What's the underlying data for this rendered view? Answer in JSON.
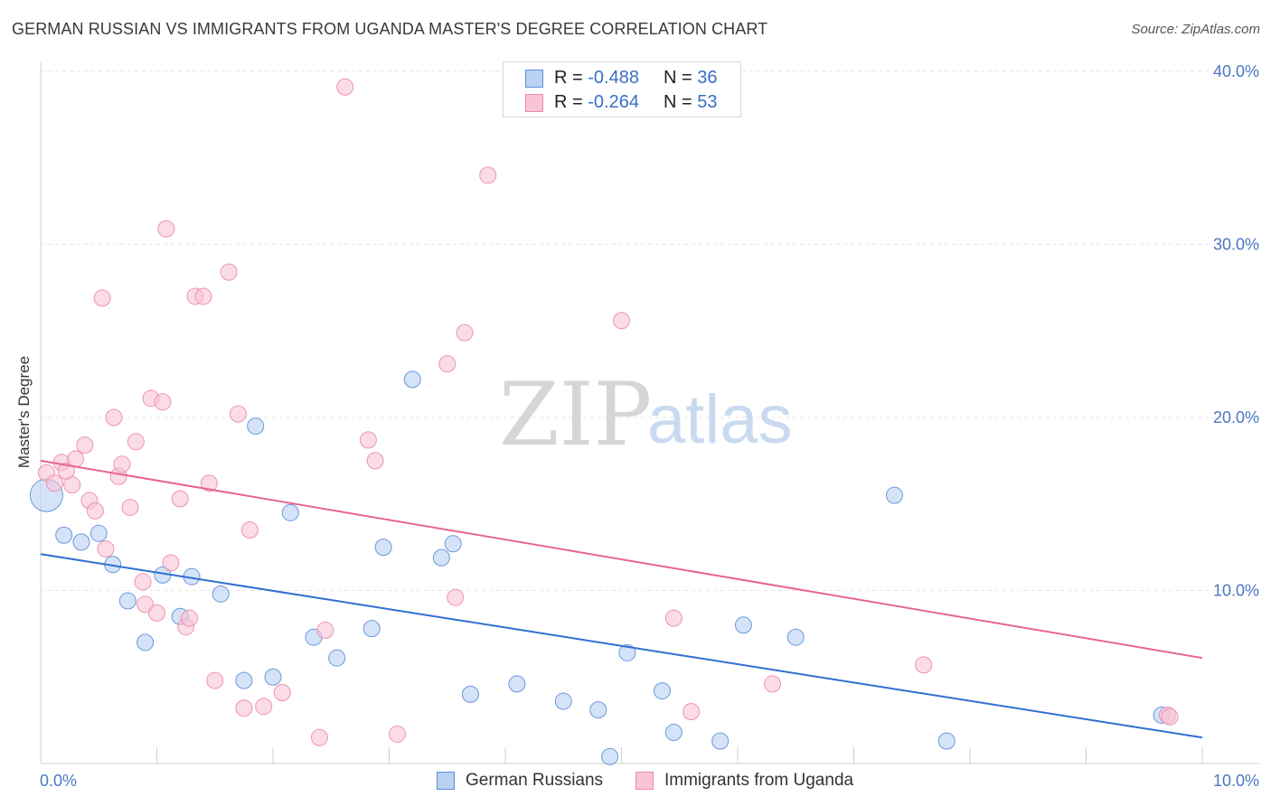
{
  "chart_data": {
    "type": "scatter",
    "title": "GERMAN RUSSIAN VS IMMIGRANTS FROM UGANDA MASTER'S DEGREE CORRELATION CHART",
    "source": "Source: ZipAtlas.com",
    "ylabel": "Master's Degree",
    "xlabel": "",
    "xlim": [
      0,
      10
    ],
    "ylim": [
      0,
      40
    ],
    "y_ticks": [
      {
        "value": 10,
        "label": "10.0%"
      },
      {
        "value": 20,
        "label": "20.0%"
      },
      {
        "value": 30,
        "label": "30.0%"
      },
      {
        "value": 40,
        "label": "40.0%"
      }
    ],
    "x_tick_labels": {
      "left": "0.0%",
      "right": "10.0%"
    },
    "watermark": {
      "part1": "ZIP",
      "part2": "atlas"
    },
    "legend": {
      "rows": [
        {
          "r_label": "R = ",
          "r_value": "-0.488",
          "n_label": "N = ",
          "n_value": "36"
        },
        {
          "r_label": "R = ",
          "r_value": "-0.264",
          "n_label": "N = ",
          "n_value": "53"
        }
      ]
    },
    "series": [
      {
        "name": "German Russians",
        "color": "#5b8fd8",
        "fill": "#b9d1f3",
        "line_color": "#2f6fd0",
        "trend": {
          "x0": 0,
          "y0": 12.1,
          "x1": 10,
          "y1": 1.5
        },
        "points": [
          [
            0.05,
            15.5,
            20
          ],
          [
            0.2,
            13.2,
            10
          ],
          [
            0.35,
            12.8,
            10
          ],
          [
            0.5,
            13.3,
            10
          ],
          [
            0.62,
            11.5,
            10
          ],
          [
            0.75,
            9.4,
            10
          ],
          [
            0.9,
            7.0,
            10
          ],
          [
            1.05,
            10.9,
            10
          ],
          [
            1.2,
            8.5,
            10
          ],
          [
            1.3,
            10.8,
            10
          ],
          [
            1.55,
            9.8,
            10
          ],
          [
            1.75,
            4.8,
            10
          ],
          [
            1.85,
            19.5,
            10
          ],
          [
            2.0,
            5.0,
            10
          ],
          [
            2.15,
            14.5,
            10
          ],
          [
            2.35,
            7.3,
            10
          ],
          [
            2.55,
            6.1,
            10
          ],
          [
            2.85,
            7.8,
            10
          ],
          [
            2.95,
            12.5,
            10
          ],
          [
            3.2,
            22.2,
            10
          ],
          [
            3.45,
            11.9,
            10
          ],
          [
            3.55,
            12.7,
            10
          ],
          [
            3.7,
            4.0,
            10
          ],
          [
            4.1,
            4.6,
            10
          ],
          [
            4.5,
            3.6,
            10
          ],
          [
            4.8,
            3.1,
            10
          ],
          [
            4.9,
            0.4,
            10
          ],
          [
            5.05,
            6.4,
            10
          ],
          [
            5.35,
            4.2,
            10
          ],
          [
            5.45,
            1.8,
            10
          ],
          [
            5.85,
            1.3,
            10
          ],
          [
            6.05,
            8.0,
            10
          ],
          [
            6.5,
            7.3,
            10
          ],
          [
            7.35,
            15.5,
            10
          ],
          [
            7.8,
            1.3,
            10
          ],
          [
            9.65,
            2.8,
            10
          ]
        ]
      },
      {
        "name": "Immigrants from Uganda",
        "color": "#ec8aac",
        "fill": "#f9c4d5",
        "line_color": "#e6658f",
        "trend": {
          "x0": 0,
          "y0": 17.5,
          "x1": 10,
          "y1": 6.1
        },
        "points": [
          [
            0.05,
            16.8,
            10
          ],
          [
            0.12,
            16.2,
            10
          ],
          [
            0.18,
            17.4,
            10
          ],
          [
            0.22,
            16.9,
            10
          ],
          [
            0.27,
            16.1,
            10
          ],
          [
            0.3,
            17.6,
            10
          ],
          [
            0.38,
            18.4,
            10
          ],
          [
            0.42,
            15.2,
            10
          ],
          [
            0.47,
            14.6,
            10
          ],
          [
            0.53,
            26.9,
            10
          ],
          [
            0.56,
            12.4,
            10
          ],
          [
            0.63,
            20.0,
            10
          ],
          [
            0.67,
            16.6,
            10
          ],
          [
            0.7,
            17.3,
            10
          ],
          [
            0.77,
            14.8,
            10
          ],
          [
            0.82,
            18.6,
            10
          ],
          [
            0.88,
            10.5,
            10
          ],
          [
            0.9,
            9.2,
            10
          ],
          [
            0.95,
            21.1,
            10
          ],
          [
            1.0,
            8.7,
            10
          ],
          [
            1.05,
            20.9,
            10
          ],
          [
            1.08,
            30.9,
            10
          ],
          [
            1.12,
            11.6,
            10
          ],
          [
            1.2,
            15.3,
            10
          ],
          [
            1.25,
            7.9,
            10
          ],
          [
            1.28,
            8.4,
            10
          ],
          [
            1.33,
            27.0,
            10
          ],
          [
            1.4,
            27.0,
            10
          ],
          [
            1.45,
            16.2,
            10
          ],
          [
            1.5,
            4.8,
            10
          ],
          [
            1.62,
            28.4,
            10
          ],
          [
            1.7,
            20.2,
            10
          ],
          [
            1.75,
            3.2,
            10
          ],
          [
            1.8,
            13.5,
            10
          ],
          [
            1.92,
            3.3,
            10
          ],
          [
            2.08,
            4.1,
            10
          ],
          [
            2.4,
            1.5,
            10
          ],
          [
            2.45,
            7.7,
            10
          ],
          [
            2.62,
            39.1,
            10
          ],
          [
            2.82,
            18.7,
            10
          ],
          [
            2.88,
            17.5,
            10
          ],
          [
            3.07,
            1.7,
            10
          ],
          [
            3.5,
            23.1,
            10
          ],
          [
            3.57,
            9.6,
            10
          ],
          [
            3.65,
            24.9,
            10
          ],
          [
            3.85,
            34.0,
            10
          ],
          [
            5.0,
            25.6,
            10
          ],
          [
            5.45,
            8.4,
            10
          ],
          [
            5.6,
            3.0,
            10
          ],
          [
            6.3,
            4.6,
            10
          ],
          [
            7.6,
            5.7,
            10
          ],
          [
            9.7,
            2.8,
            10
          ],
          [
            9.72,
            2.7,
            10
          ]
        ]
      }
    ]
  },
  "colors": {
    "title_text": "#3a3a3a",
    "tick_text": "#4a78c2",
    "grid": "#e4e4e4"
  }
}
